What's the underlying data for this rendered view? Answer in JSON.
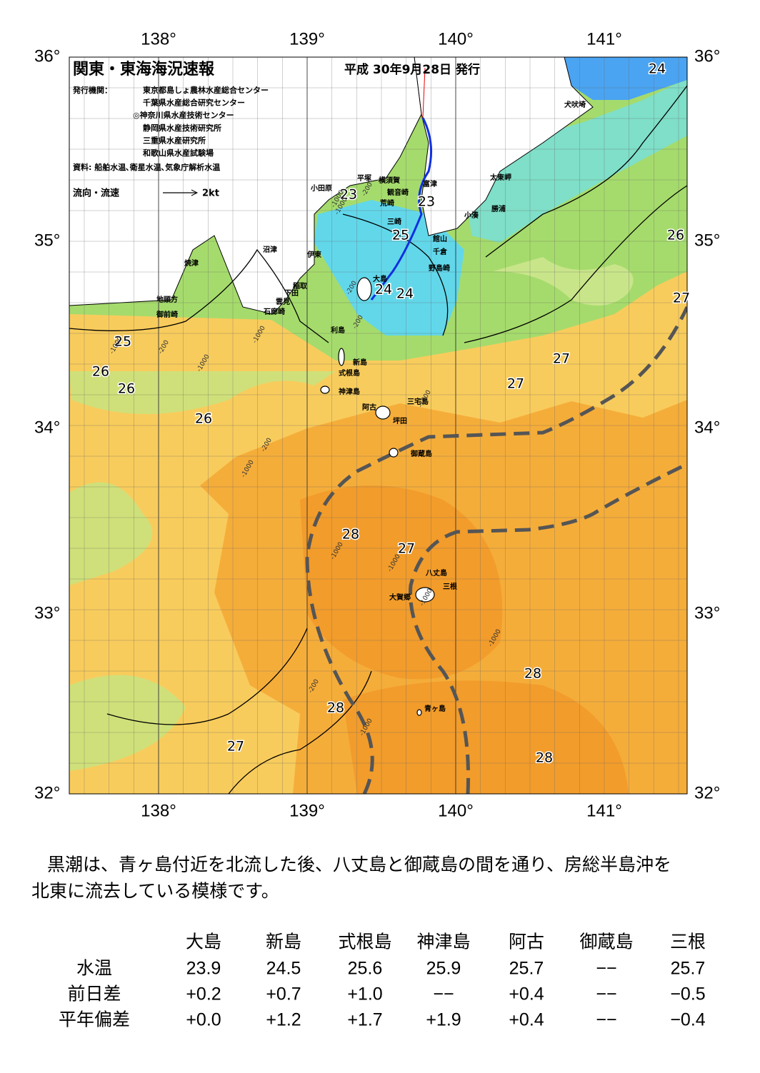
{
  "header": {
    "title": "関東・東海海況速報",
    "date": "平成 30年9月28日 発行",
    "publisher_label": "発行機関：",
    "publishers": [
      "東京都島しょ農林水産総合センター",
      "千葉県水産総合研究センター",
      "◎神奈川県水産技術センター",
      "静岡県水産技術研究所",
      "三重県水産研究所",
      "和歌山県水産試験場"
    ],
    "source": "資料: 船舶水温､衛星水温､気象庁解析水温",
    "legend_label": "流向・流速",
    "legend_scale": "2kt"
  },
  "axes": {
    "lon_top": [
      "138°",
      "139°",
      "140°",
      "141°"
    ],
    "lon_bottom": [
      "138°",
      "139°",
      "140°",
      "141°"
    ],
    "lat_left": [
      "36°",
      "35°",
      "34°",
      "33°",
      "32°"
    ],
    "lat_right": [
      "36°",
      "35°",
      "34°",
      "33°",
      "32°"
    ]
  },
  "places": [
    "犬吠埼",
    "太東岬",
    "勝浦",
    "小湊",
    "富津",
    "平塚",
    "横須賀",
    "小田原",
    "観音崎",
    "荒崎",
    "三崎",
    "館山",
    "千倉",
    "野島崎",
    "大島",
    "沼津",
    "伊東",
    "焼津",
    "稲取",
    "下田",
    "雲見",
    "石廊崎",
    "地頭方",
    "御前崎",
    "利島",
    "新島",
    "式根島",
    "神津島",
    "三宅島",
    "阿古",
    "坪田",
    "御蔵島",
    "八丈島",
    "三根",
    "大賀郷",
    "青ヶ島"
  ],
  "temps": [
    "24",
    "23",
    "23",
    "25",
    "24",
    "24",
    "26",
    "27",
    "25",
    "26",
    "26",
    "26",
    "27",
    "27",
    "28",
    "27",
    "28",
    "28",
    "27",
    "28"
  ],
  "depths": [
    "-200",
    "-1000",
    "-200",
    "-1000",
    "-200",
    "-1000",
    "-200",
    "-1000",
    "-1000",
    "-1000",
    "-200",
    "-1000",
    "-1000",
    "-1000",
    "-1000",
    "-200",
    "-1000",
    "-1000"
  ],
  "summary": [
    "黒潮は、青ヶ島付近を北流した後、八丈島と御蔵島の間を通り、房総半島沖を",
    "北東に流去している模様です。"
  ],
  "table": {
    "columns": [
      "大島",
      "新島",
      "式根島",
      "神津島",
      "阿古",
      "御蔵島",
      "三根"
    ],
    "rows": [
      {
        "label": "水温",
        "values": [
          "23.9",
          "24.5",
          "25.6",
          "25.9",
          "25.7",
          "−−",
          "25.7"
        ]
      },
      {
        "label": "前日差",
        "values": [
          "+0.2",
          "+0.7",
          "+1.0",
          "−−",
          "+0.4",
          "−−",
          "−0.5"
        ]
      },
      {
        "label": "平年偏差",
        "values": [
          "+0.0",
          "+1.2",
          "+1.7",
          "+1.9",
          "+0.4",
          "−−",
          "−0.4"
        ]
      }
    ]
  }
}
